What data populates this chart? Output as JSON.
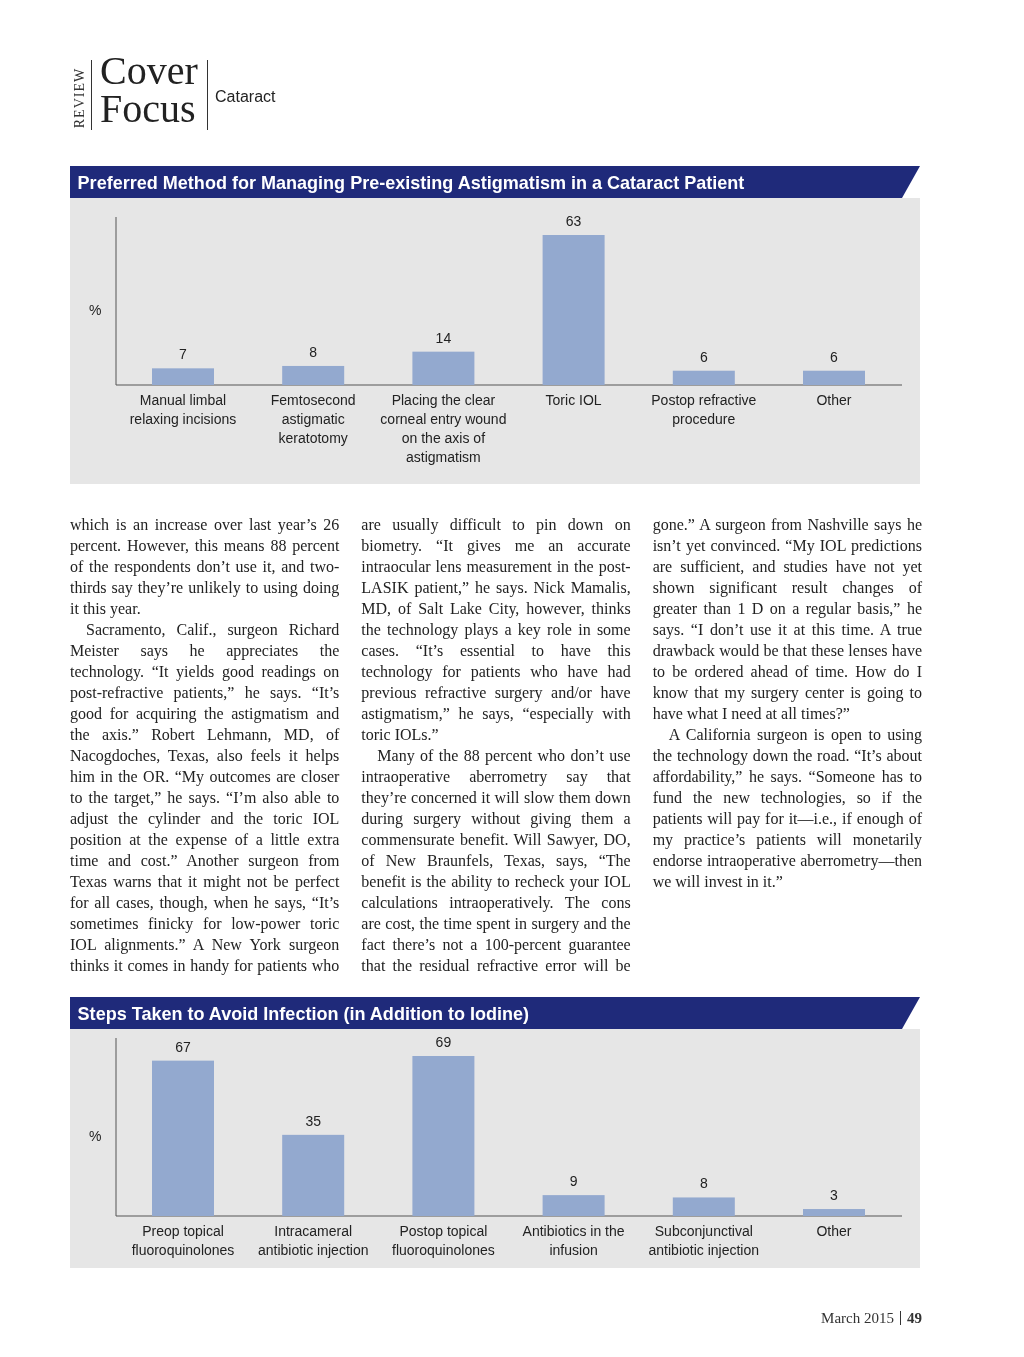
{
  "chart_data": [
    {
      "type": "other",
      "title": "Cover Focus",
      "subtitle": "Cataract",
      "annotations": [
        "REVIEW"
      ]
    },
    {
      "type": "bar",
      "title": "Preferred Method for Managing Pre-existing Astigmatism in a Cataract Patient",
      "ylabel": "%",
      "categories": [
        "Manual limbal relaxing incisions",
        "Femtosecond astigmatic keratotomy",
        "Placing the clear corneal entry wound on the axis of astigmatism",
        "Toric IOL",
        "Postop refractive procedure",
        "Other"
      ],
      "values": [
        7,
        8,
        14,
        63,
        6,
        6
      ],
      "color": "#93a9cf",
      "data_labels": true
    },
    {
      "type": "other",
      "annotations": [
        "which is an increase over last year’s 26 percent. However, this means 88 percent of the respondents don’t use it, and two-thirds say they’re unlikely to using doing it this year.",
        "Sacramento, Calif., surgeon Richard Meister says he appreciates the technology. “It yields good readings on post-refractive patients,” he says. “It’s good for acquiring the astigmatism and the axis.” Robert Lehmann, MD, of Nacogdoches, Texas, also feels it helps him in the OR. “My outcomes are closer to the target,” he says. “I’m also able to adjust the cylinder and the toric IOL position at the expense of a little extra time and cost.” Another surgeon from Texas warns that it might not be perfect for all cases, though, when he says, “It’s sometimes finicky for low-power toric IOL alignments.” A New York surgeon thinks it comes in handy for patients who are usually difficult to pin down on biometry. “It gives me an accurate intraocular lens measurement in the post-LASIK patient,” he says. Nick Mamalis, MD, of Salt Lake City, however, thinks the technology plays a key role in some cases. “It’s essential to have this technology for patients who have had previous refractive surgery and/or have astigmatism,” he says, “especially with toric IOLs.”",
        "Many of the 88 percent who don’t use intraoperative aberrometry say that they’re concerned it will slow them down during surgery without giving them a commensurate benefit. Will Sawyer, DO, of New Braunfels, Texas, says, “The benefit is the ability to recheck your IOL calculations intraoperatively. The cons are cost, the time spent in surgery and the fact there’s not a 100-percent guarantee that the residual refractive error will be gone.” A surgeon from Nashville says he isn’t yet convinced. “My IOL predictions are sufficient, and studies have not yet shown significant result changes of greater than 1 D on a regular basis,” he says. “I don’t use it at this time. A true drawback would be that these lenses have to be ordered ahead of time. How do I know that my surgery center is going to have what I need at all times?”",
        "A California surgeon is open to using the technology down the road. “It’s about affordability,” he says. “Someone has to fund the new technologies, so if the patients will pay for it—i.e., if enough of my practice’s patients will monetarily endorse intraoperative aberrometry—then we will invest in it.”"
      ]
    },
    {
      "type": "bar",
      "title": "Steps Taken to Avoid Infection (in Addition to Iodine)",
      "ylabel": "%",
      "categories": [
        "Preop topical fluoroquinolones",
        "Intracameral antibiotic injection",
        "Postop topical fluoroquinolones",
        "Antibiotics in the infusion",
        "Subconjunctival antibiotic injection",
        "Other"
      ],
      "values": [
        67,
        35,
        69,
        9,
        8,
        3
      ],
      "color": "#93a9cf",
      "data_labels": true
    },
    {
      "type": "other",
      "annotations": [
        "March 2015",
        "49"
      ]
    }
  ]
}
